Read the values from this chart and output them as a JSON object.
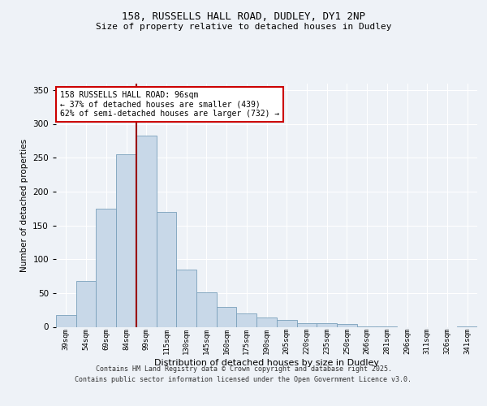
{
  "title1": "158, RUSSELLS HALL ROAD, DUDLEY, DY1 2NP",
  "title2": "Size of property relative to detached houses in Dudley",
  "xlabel": "Distribution of detached houses by size in Dudley",
  "ylabel": "Number of detached properties",
  "bar_labels": [
    "39sqm",
    "54sqm",
    "69sqm",
    "84sqm",
    "99sqm",
    "115sqm",
    "130sqm",
    "145sqm",
    "160sqm",
    "175sqm",
    "190sqm",
    "205sqm",
    "220sqm",
    "235sqm",
    "250sqm",
    "266sqm",
    "281sqm",
    "296sqm",
    "311sqm",
    "326sqm",
    "341sqm"
  ],
  "bar_values": [
    18,
    68,
    175,
    255,
    283,
    170,
    85,
    51,
    30,
    20,
    14,
    10,
    6,
    5,
    4,
    1,
    1,
    0,
    0,
    0,
    1
  ],
  "bar_color": "#c8d8e8",
  "bar_edge_color": "#7aa0bb",
  "vline_color": "#990000",
  "annotation_text": "158 RUSSELLS HALL ROAD: 96sqm\n← 37% of detached houses are smaller (439)\n62% of semi-detached houses are larger (732) →",
  "annotation_box_color": "#ffffff",
  "annotation_box_edge": "#cc0000",
  "ylim": [
    0,
    360
  ],
  "yticks": [
    0,
    50,
    100,
    150,
    200,
    250,
    300,
    350
  ],
  "bg_color": "#eef2f7",
  "plot_bg_color": "#eef2f7",
  "footer1": "Contains HM Land Registry data © Crown copyright and database right 2025.",
  "footer2": "Contains public sector information licensed under the Open Government Licence v3.0."
}
